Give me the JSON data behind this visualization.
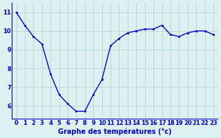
{
  "x": [
    0,
    1,
    2,
    3,
    4,
    5,
    6,
    7,
    8,
    9,
    10,
    11,
    12,
    13,
    14,
    15,
    16,
    17,
    18,
    19,
    20,
    21,
    22,
    23
  ],
  "y": [
    11.0,
    10.3,
    9.7,
    9.3,
    7.7,
    6.6,
    6.1,
    5.7,
    5.7,
    6.6,
    7.4,
    9.2,
    9.6,
    9.9,
    10.0,
    10.1,
    10.1,
    10.3,
    9.8,
    9.7,
    9.9,
    10.0,
    10.0,
    9.8
  ],
  "line_color": "#0000cc",
  "marker": "s",
  "marker_size": 2,
  "bg_color": "#dff0f0",
  "grid_color": "#b8d8d8",
  "xlabel": "Graphe des températures (°c)",
  "xlabel_color": "#0000cc",
  "ylabel_ticks": [
    6,
    7,
    8,
    9,
    10,
    11
  ],
  "ylim": [
    5.3,
    11.5
  ],
  "xlim": [
    -0.5,
    23.5
  ],
  "tick_color": "#0000cc",
  "tick_fontsize": 6,
  "xlabel_fontsize": 7,
  "axis_color": "#0000cc",
  "linewidth": 1.0
}
